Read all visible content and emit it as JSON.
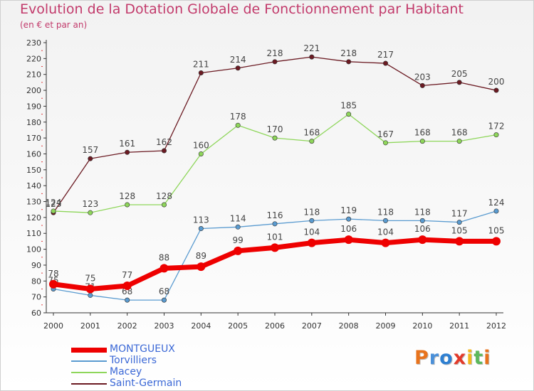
{
  "chart_data": {
    "type": "line",
    "title": "Evolution de la Dotation Globale de Fonctionnement par Habitant",
    "subtitle": "(en € et par an)",
    "xlabel": "",
    "ylabel": "",
    "categories": [
      "2000",
      "2001",
      "2002",
      "2003",
      "2004",
      "2005",
      "2006",
      "2007",
      "2008",
      "2009",
      "2010",
      "2011",
      "2012"
    ],
    "ylim": [
      60,
      230
    ],
    "yticks": [
      60,
      70,
      80,
      90,
      100,
      110,
      120,
      130,
      140,
      150,
      160,
      170,
      180,
      190,
      200,
      210,
      220,
      230
    ],
    "grid": false,
    "legend_position": "bottom-left",
    "series": [
      {
        "name": "Saint-Germain",
        "color": "#6b1a22",
        "values": [
          123,
          157,
          161,
          162,
          211,
          214,
          218,
          221,
          218,
          217,
          203,
          205,
          200
        ]
      },
      {
        "name": "Macey",
        "color": "#8ed65a",
        "values": [
          124,
          123,
          128,
          128,
          160,
          178,
          170,
          168,
          185,
          167,
          168,
          168,
          172
        ]
      },
      {
        "name": "Torvilliers",
        "color": "#5a9bd0",
        "values": [
          75,
          71,
          68,
          68,
          113,
          114,
          116,
          118,
          119,
          118,
          118,
          117,
          124
        ]
      },
      {
        "name": "MONTGUEUX",
        "color": "#ee0000",
        "values": [
          78,
          75,
          77,
          88,
          89,
          99,
          101,
          104,
          106,
          104,
          106,
          105,
          105
        ]
      }
    ],
    "legend_order": [
      "MONTGUEUX",
      "Torvilliers",
      "Macey",
      "Saint-Germain"
    ]
  },
  "logo": {
    "text": "Proxiti",
    "letters": [
      {
        "ch": "P",
        "color": "#e8731c"
      },
      {
        "ch": "r",
        "color": "#4a90d9"
      },
      {
        "ch": "o",
        "color": "#2e7fd1"
      },
      {
        "ch": "x",
        "color": "#e23a2a"
      },
      {
        "ch": "i",
        "color": "#f2b71c"
      },
      {
        "ch": "t",
        "color": "#5cb85c"
      },
      {
        "ch": "i",
        "color": "#e8731c"
      }
    ]
  }
}
